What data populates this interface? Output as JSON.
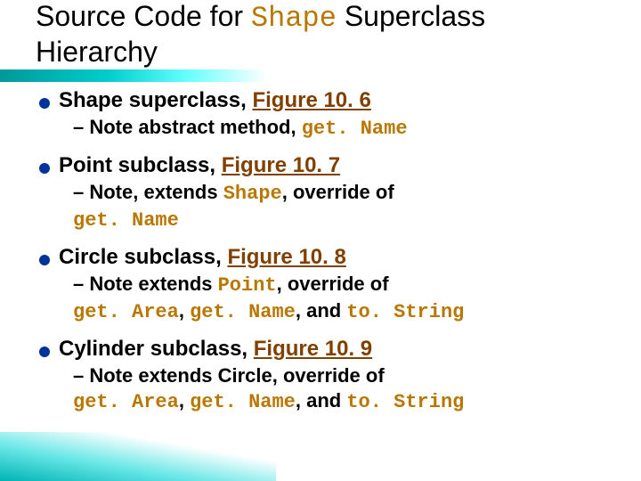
{
  "title": {
    "pre": "Source Code for ",
    "code": "Shape",
    "post": " Superclass Hierarchy"
  },
  "items": [
    {
      "heading": {
        "text": "Shape superclass, ",
        "link": "Figure 10. 6"
      },
      "sub": [
        {
          "t": "– Note abstract method, "
        },
        {
          "t": "get. Name",
          "code": true
        }
      ]
    },
    {
      "heading": {
        "text": "Point subclass, ",
        "link": "Figure 10. 7"
      },
      "sub": [
        {
          "t": "– Note, extends "
        },
        {
          "t": "Shape",
          "code": true
        },
        {
          "t": ", override of "
        },
        {
          "t": "get. Name",
          "code": true,
          "break": true
        }
      ]
    },
    {
      "heading": {
        "text": "Circle subclass, ",
        "link": "Figure 10. 8"
      },
      "sub": [
        {
          "t": "– Note extends "
        },
        {
          "t": "Point",
          "code": true
        },
        {
          "t": ", override of "
        },
        {
          "t": "get. Area",
          "code": true,
          "break": true
        },
        {
          "t": ", "
        },
        {
          "t": "get. Name",
          "code": true
        },
        {
          "t": ", and "
        },
        {
          "t": "to. String",
          "code": true
        }
      ]
    },
    {
      "heading": {
        "text": "Cylinder subclass, ",
        "link": "Figure 10. 9"
      },
      "sub": [
        {
          "t": "– Note extends Circle, override of "
        },
        {
          "t": "get. Area",
          "code": true,
          "break": true
        },
        {
          "t": ", "
        },
        {
          "t": "get. Name",
          "code": true
        },
        {
          "t": ", and "
        },
        {
          "t": "to. String",
          "code": true
        }
      ]
    }
  ],
  "colors": {
    "bullet": "#003399",
    "link": "#804000",
    "code": "#b87800",
    "gradient_from": "#009999",
    "gradient_to": "#ffffff"
  }
}
